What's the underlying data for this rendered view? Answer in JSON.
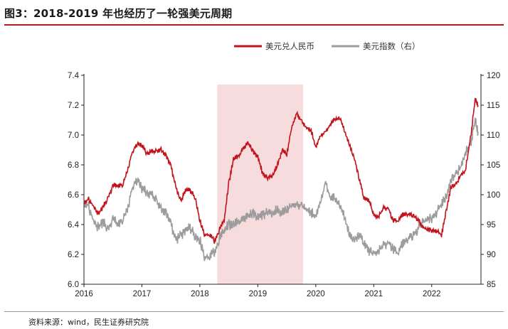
{
  "title": "图3：2018-2019 年也经历了一轮强美元周期",
  "source": "资料来源：wind，民生证券研究院",
  "chart_data": {
    "type": "line",
    "title": "图3：2018-2019 年也经历了一轮强美元周期",
    "x_ticks": [
      "2016",
      "2017",
      "2018",
      "2019",
      "2020",
      "2021",
      "2022"
    ],
    "x_tick_values": [
      2016,
      2017,
      2018,
      2019,
      2020,
      2021,
      2022
    ],
    "xlim": [
      2016,
      2022.85
    ],
    "y_left": {
      "ticks": [
        "6.0",
        "6.2",
        "6.4",
        "6.6",
        "6.8",
        "7.0",
        "7.2",
        "7.4"
      ],
      "lim": [
        6.0,
        7.4
      ]
    },
    "y_right": {
      "ticks": [
        "85",
        "90",
        "95",
        "100",
        "105",
        "110",
        "115",
        "120"
      ],
      "lim": [
        85,
        120
      ]
    },
    "shaded_region": [
      2018.3,
      2019.78
    ],
    "colors": {
      "usdcny": "#c0131b",
      "dxy": "#9c9c9c",
      "shade": "#f6dcdc"
    },
    "series": [
      {
        "name": "美元兑人民币",
        "axis": "left",
        "x": [
          2016.0,
          2016.08,
          2016.17,
          2016.25,
          2016.33,
          2016.42,
          2016.5,
          2016.58,
          2016.67,
          2016.75,
          2016.83,
          2016.92,
          2017.0,
          2017.08,
          2017.17,
          2017.25,
          2017.33,
          2017.42,
          2017.5,
          2017.58,
          2017.67,
          2017.75,
          2017.83,
          2017.92,
          2018.0,
          2018.08,
          2018.17,
          2018.25,
          2018.33,
          2018.42,
          2018.5,
          2018.58,
          2018.67,
          2018.75,
          2018.83,
          2018.92,
          2019.0,
          2019.08,
          2019.17,
          2019.25,
          2019.33,
          2019.42,
          2019.5,
          2019.58,
          2019.67,
          2019.75,
          2019.83,
          2019.92,
          2020.0,
          2020.08,
          2020.17,
          2020.25,
          2020.33,
          2020.42,
          2020.5,
          2020.58,
          2020.67,
          2020.75,
          2020.83,
          2020.92,
          2021.0,
          2021.08,
          2021.17,
          2021.25,
          2021.33,
          2021.42,
          2021.5,
          2021.58,
          2021.67,
          2021.75,
          2021.83,
          2021.92,
          2022.0,
          2022.08,
          2022.17,
          2022.25,
          2022.33,
          2022.42,
          2022.5,
          2022.58,
          2022.67,
          2022.75,
          2022.8
        ],
        "values": [
          6.55,
          6.57,
          6.52,
          6.47,
          6.52,
          6.58,
          6.66,
          6.66,
          6.67,
          6.76,
          6.88,
          6.94,
          6.93,
          6.88,
          6.89,
          6.89,
          6.9,
          6.86,
          6.79,
          6.66,
          6.55,
          6.63,
          6.63,
          6.58,
          6.43,
          6.33,
          6.33,
          6.29,
          6.36,
          6.43,
          6.68,
          6.84,
          6.86,
          6.91,
          6.95,
          6.89,
          6.85,
          6.74,
          6.71,
          6.73,
          6.79,
          6.9,
          6.87,
          7.05,
          7.15,
          7.09,
          7.05,
          7.03,
          6.92,
          6.99,
          7.02,
          7.07,
          7.11,
          7.11,
          7.03,
          6.93,
          6.84,
          6.71,
          6.58,
          6.56,
          6.46,
          6.45,
          6.51,
          6.51,
          6.43,
          6.42,
          6.47,
          6.47,
          6.46,
          6.44,
          6.39,
          6.37,
          6.36,
          6.36,
          6.33,
          6.49,
          6.65,
          6.67,
          6.73,
          6.76,
          6.98,
          7.24,
          7.2
        ]
      },
      {
        "name": "美元指数（右）",
        "axis": "right",
        "x": [
          2016.0,
          2016.08,
          2016.17,
          2016.25,
          2016.33,
          2016.42,
          2016.5,
          2016.58,
          2016.67,
          2016.75,
          2016.83,
          2016.92,
          2017.0,
          2017.08,
          2017.17,
          2017.25,
          2017.33,
          2017.42,
          2017.5,
          2017.58,
          2017.67,
          2017.75,
          2017.83,
          2017.92,
          2018.0,
          2018.08,
          2018.17,
          2018.25,
          2018.33,
          2018.42,
          2018.5,
          2018.58,
          2018.67,
          2018.75,
          2018.83,
          2018.92,
          2019.0,
          2019.08,
          2019.17,
          2019.25,
          2019.33,
          2019.42,
          2019.5,
          2019.58,
          2019.67,
          2019.75,
          2019.83,
          2019.92,
          2020.0,
          2020.08,
          2020.17,
          2020.25,
          2020.33,
          2020.42,
          2020.5,
          2020.58,
          2020.67,
          2020.75,
          2020.83,
          2020.92,
          2021.0,
          2021.08,
          2021.17,
          2021.25,
          2021.33,
          2021.42,
          2021.5,
          2021.58,
          2021.67,
          2021.75,
          2021.83,
          2021.92,
          2022.0,
          2022.08,
          2022.17,
          2022.25,
          2022.33,
          2022.42,
          2022.5,
          2022.58,
          2022.67,
          2022.75,
          2022.8
        ],
        "values": [
          99,
          98,
          95.5,
          94.5,
          95.5,
          94,
          96,
          95,
          96,
          97.5,
          101,
          102.5,
          101,
          100.5,
          100,
          99,
          97.5,
          97,
          95,
          92.5,
          93,
          94,
          94.5,
          93,
          92.5,
          89.5,
          89.5,
          90.5,
          92.5,
          94,
          95,
          95,
          95.5,
          96,
          96.5,
          97,
          96,
          96.5,
          97,
          97,
          97.5,
          97,
          97.5,
          98.5,
          98.5,
          98,
          97.5,
          97,
          96.5,
          98.5,
          102,
          99.5,
          99.5,
          98,
          96.5,
          93,
          92.5,
          93.5,
          92,
          90.5,
          90,
          90.5,
          91.5,
          92,
          91,
          90,
          92,
          92.5,
          93,
          94,
          95.5,
          96,
          96,
          97,
          98.5,
          99.5,
          102.5,
          103.5,
          104.5,
          107,
          108.5,
          112.5,
          110.5
        ]
      }
    ],
    "legend": [
      "美元兑人民币",
      "美元指数（右）"
    ]
  }
}
